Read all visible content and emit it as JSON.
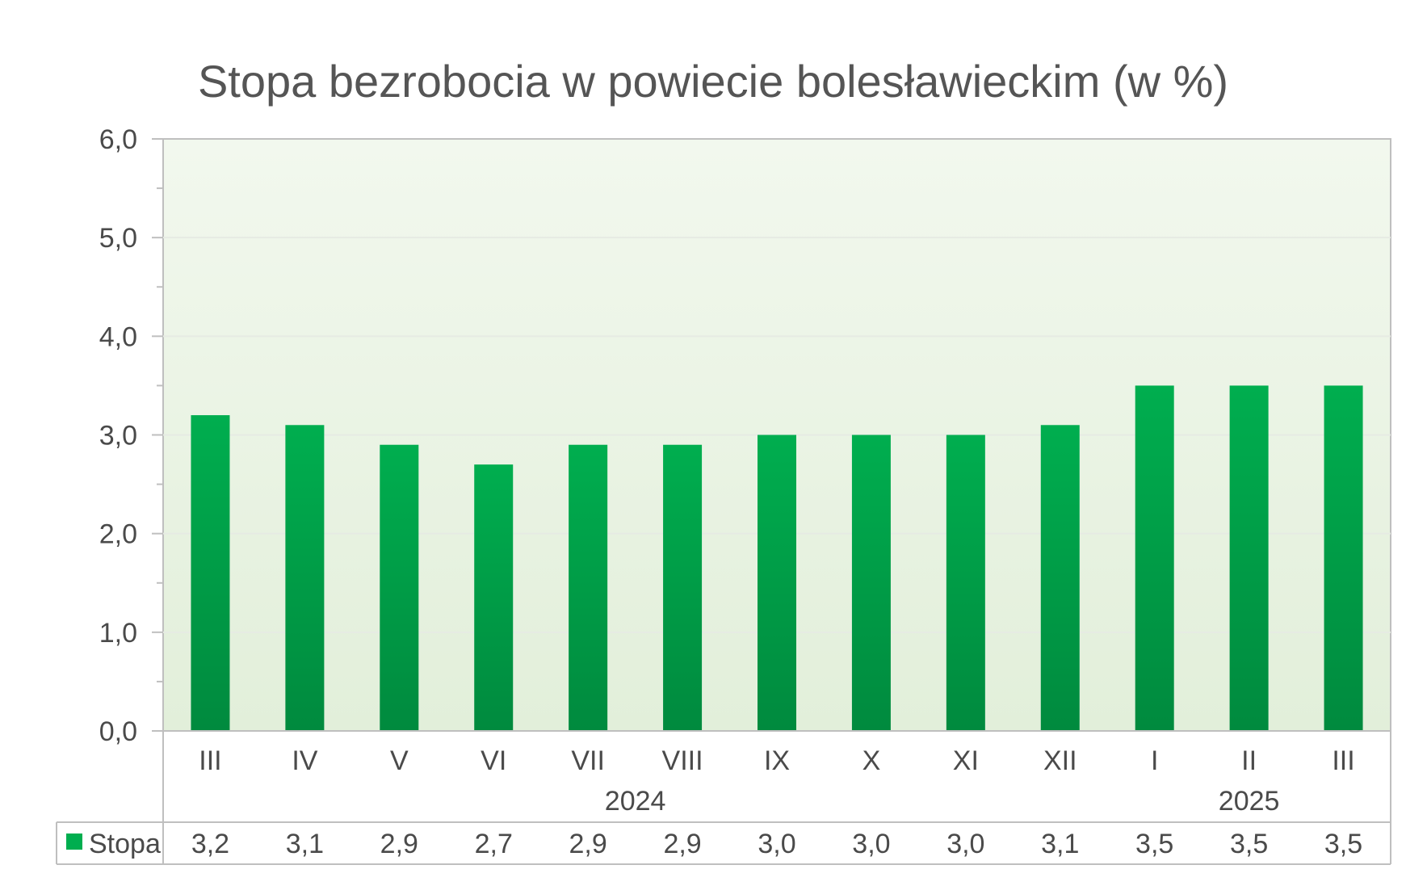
{
  "chart_data": {
    "type": "bar",
    "title": "Stopa bezrobocia w powiecie bolesławieckim (w %)",
    "xlabel": "",
    "ylabel": "",
    "ylim": [
      0,
      6
    ],
    "yticks": [
      "0,0",
      "1,0",
      "2,0",
      "3,0",
      "4,0",
      "5,0",
      "6,0"
    ],
    "grid": true,
    "categories": [
      "III",
      "IV",
      "V",
      "VI",
      "VII",
      "VIII",
      "IX",
      "X",
      "XI",
      "XII",
      "I",
      "II",
      "III"
    ],
    "groups": [
      {
        "label": "2024",
        "from": 0,
        "to": 9
      },
      {
        "label": "2025",
        "from": 10,
        "to": 12
      }
    ],
    "series": [
      {
        "name": "Stopa",
        "values": [
          3.2,
          3.1,
          2.9,
          2.7,
          2.9,
          2.9,
          3.0,
          3.0,
          3.0,
          3.1,
          3.5,
          3.5,
          3.5
        ],
        "labels": [
          "3,2",
          "3,1",
          "2,9",
          "2,7",
          "2,9",
          "2,9",
          "3,0",
          "3,0",
          "3,0",
          "3,1",
          "3,5",
          "3,5",
          "3,5"
        ]
      }
    ],
    "legend": "data-table-left",
    "colors": {
      "bar_top": "#00AE4F",
      "bar_bottom": "#008A3E",
      "plot_bg_top": "#F2F8EE",
      "plot_bg_bottom": "#E2EFDA",
      "grid": "#E6EBE3",
      "axis": "#BFBFBF",
      "text": "#4A4A4A"
    }
  }
}
